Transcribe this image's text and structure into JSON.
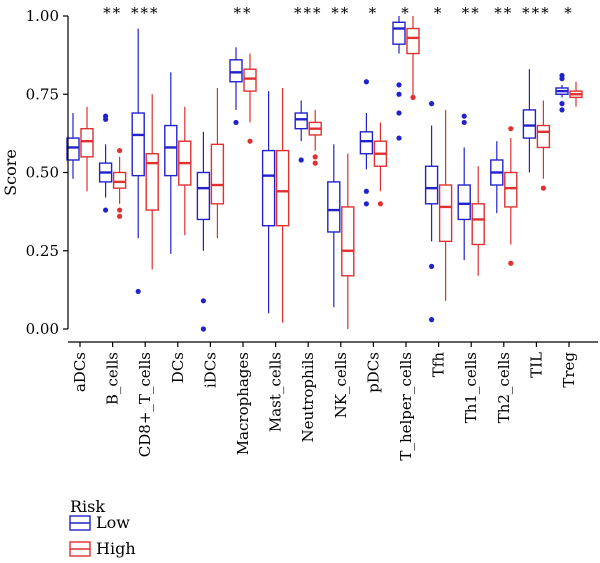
{
  "chart_data": {
    "type": "box",
    "ylabel": "Score",
    "ylim": [
      0.0,
      1.0
    ],
    "yticks": [
      0.0,
      0.25,
      0.5,
      0.75,
      1.0
    ],
    "ytick_labels": [
      "0.00",
      "0.25",
      "0.50",
      "0.75",
      "1.00"
    ],
    "categories": [
      "aDCs",
      "B_cells",
      "CD8+_T_cells",
      "DCs",
      "iDCs",
      "Macrophages",
      "Mast_cells",
      "Neutrophils",
      "NK_cells",
      "pDCs",
      "T_helper_cells",
      "Tfh",
      "Th1_cells",
      "Th2_cells",
      "TIL",
      "Treg"
    ],
    "significance": [
      "",
      "**",
      "***",
      "",
      "",
      "**",
      "",
      "***",
      "**",
      "*",
      "*",
      "*",
      "**",
      "**",
      "***",
      "*"
    ],
    "legend": {
      "title": "Risk",
      "placement": "bottom-left"
    },
    "series": [
      {
        "name": "Low",
        "color": "#2222cc",
        "boxes": [
          {
            "min": 0.48,
            "q1": 0.54,
            "median": 0.58,
            "q3": 0.61,
            "max": 0.69,
            "outliers": []
          },
          {
            "min": 0.42,
            "q1": 0.47,
            "median": 0.5,
            "q3": 0.53,
            "max": 0.59,
            "outliers": [
              0.38,
              0.67,
              0.68
            ]
          },
          {
            "min": 0.29,
            "q1": 0.49,
            "median": 0.62,
            "q3": 0.69,
            "max": 0.96,
            "outliers": [
              0.12
            ]
          },
          {
            "min": 0.24,
            "q1": 0.49,
            "median": 0.58,
            "q3": 0.65,
            "max": 0.82,
            "outliers": []
          },
          {
            "min": 0.25,
            "q1": 0.35,
            "median": 0.45,
            "q3": 0.5,
            "max": 0.63,
            "outliers": [
              0.0,
              0.09
            ]
          },
          {
            "min": 0.7,
            "q1": 0.79,
            "median": 0.82,
            "q3": 0.86,
            "max": 0.9,
            "outliers": [
              0.66
            ]
          },
          {
            "min": 0.05,
            "q1": 0.33,
            "median": 0.49,
            "q3": 0.57,
            "max": 0.76,
            "outliers": []
          },
          {
            "min": 0.6,
            "q1": 0.64,
            "median": 0.67,
            "q3": 0.69,
            "max": 0.73,
            "outliers": [
              0.54
            ]
          },
          {
            "min": 0.07,
            "q1": 0.31,
            "median": 0.38,
            "q3": 0.47,
            "max": 0.59,
            "outliers": []
          },
          {
            "min": 0.51,
            "q1": 0.56,
            "median": 0.6,
            "q3": 0.63,
            "max": 0.69,
            "outliers": [
              0.4,
              0.44,
              0.79
            ]
          },
          {
            "min": 0.88,
            "q1": 0.91,
            "median": 0.96,
            "q3": 0.98,
            "max": 1.0,
            "outliers": [
              0.61,
              0.69,
              0.75,
              0.78
            ]
          },
          {
            "min": 0.28,
            "q1": 0.4,
            "median": 0.45,
            "q3": 0.52,
            "max": 0.65,
            "outliers": [
              0.03,
              0.2,
              0.72
            ]
          },
          {
            "min": 0.22,
            "q1": 0.35,
            "median": 0.4,
            "q3": 0.46,
            "max": 0.58,
            "outliers": [
              0.66,
              0.68
            ]
          },
          {
            "min": 0.37,
            "q1": 0.46,
            "median": 0.5,
            "q3": 0.54,
            "max": 0.6,
            "outliers": []
          },
          {
            "min": 0.5,
            "q1": 0.61,
            "median": 0.65,
            "q3": 0.7,
            "max": 0.83,
            "outliers": []
          },
          {
            "min": 0.74,
            "q1": 0.75,
            "median": 0.76,
            "q3": 0.77,
            "max": 0.78,
            "outliers": [
              0.7,
              0.72,
              0.8,
              0.81
            ]
          }
        ]
      },
      {
        "name": "High",
        "color": "#e03030",
        "boxes": [
          {
            "min": 0.44,
            "q1": 0.55,
            "median": 0.6,
            "q3": 0.64,
            "max": 0.71,
            "outliers": []
          },
          {
            "min": 0.4,
            "q1": 0.45,
            "median": 0.47,
            "q3": 0.5,
            "max": 0.55,
            "outliers": [
              0.36,
              0.38,
              0.57
            ]
          },
          {
            "min": 0.19,
            "q1": 0.38,
            "median": 0.53,
            "q3": 0.56,
            "max": 0.75,
            "outliers": []
          },
          {
            "min": 0.3,
            "q1": 0.46,
            "median": 0.53,
            "q3": 0.6,
            "max": 0.71,
            "outliers": []
          },
          {
            "min": 0.29,
            "q1": 0.4,
            "median": 0.46,
            "q3": 0.59,
            "max": 0.77,
            "outliers": []
          },
          {
            "min": 0.66,
            "q1": 0.76,
            "median": 0.8,
            "q3": 0.83,
            "max": 0.88,
            "outliers": [
              0.6
            ]
          },
          {
            "min": 0.02,
            "q1": 0.33,
            "median": 0.44,
            "q3": 0.57,
            "max": 0.77,
            "outliers": []
          },
          {
            "min": 0.57,
            "q1": 0.62,
            "median": 0.64,
            "q3": 0.66,
            "max": 0.7,
            "outliers": [
              0.53,
              0.55
            ]
          },
          {
            "min": 0.0,
            "q1": 0.17,
            "median": 0.25,
            "q3": 0.39,
            "max": 0.56,
            "outliers": []
          },
          {
            "min": 0.44,
            "q1": 0.52,
            "median": 0.56,
            "q3": 0.6,
            "max": 0.66,
            "outliers": [
              0.4
            ]
          },
          {
            "min": 0.74,
            "q1": 0.88,
            "median": 0.93,
            "q3": 0.96,
            "max": 1.0,
            "outliers": [
              0.74
            ]
          },
          {
            "min": 0.09,
            "q1": 0.28,
            "median": 0.39,
            "q3": 0.46,
            "max": 0.7,
            "outliers": []
          },
          {
            "min": 0.17,
            "q1": 0.27,
            "median": 0.35,
            "q3": 0.4,
            "max": 0.52,
            "outliers": []
          },
          {
            "min": 0.27,
            "q1": 0.39,
            "median": 0.45,
            "q3": 0.5,
            "max": 0.61,
            "outliers": [
              0.21,
              0.64
            ]
          },
          {
            "min": 0.48,
            "q1": 0.58,
            "median": 0.63,
            "q3": 0.65,
            "max": 0.73,
            "outliers": [
              0.45
            ]
          },
          {
            "min": 0.71,
            "q1": 0.74,
            "median": 0.75,
            "q3": 0.76,
            "max": 0.79,
            "outliers": []
          }
        ]
      }
    ]
  }
}
